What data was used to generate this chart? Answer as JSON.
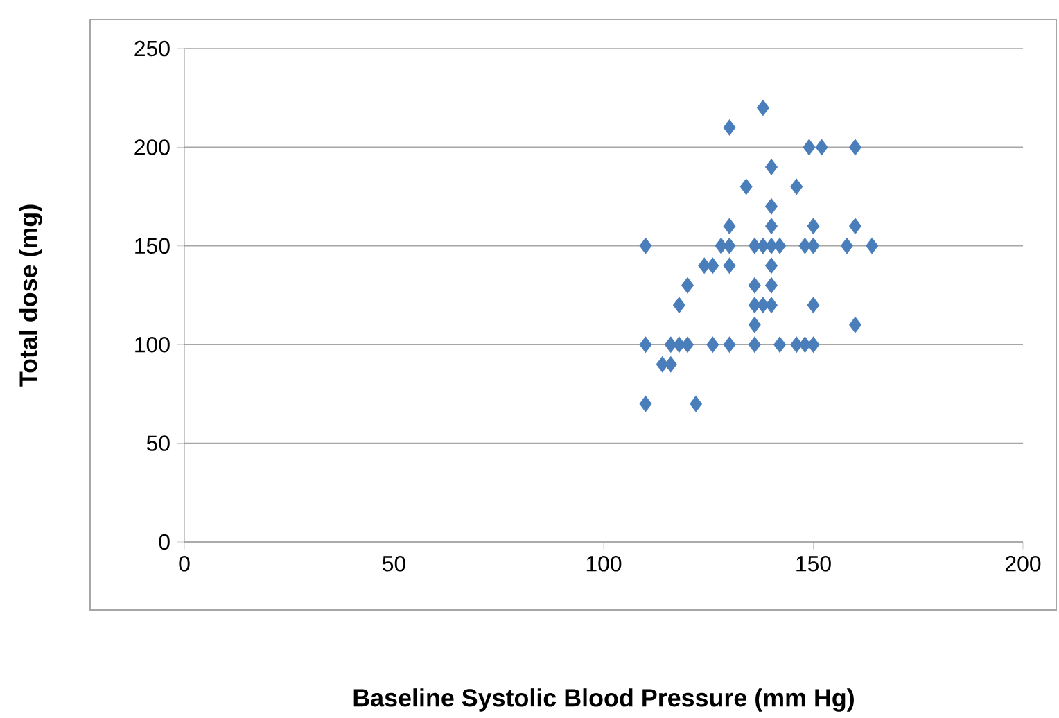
{
  "chart_data": {
    "type": "scatter",
    "xlabel": "Baseline Systolic Blood Pressure (mm Hg)",
    "ylabel": "Total dose (mg)",
    "x": [
      110,
      110,
      110,
      114,
      116,
      116,
      118,
      118,
      120,
      120,
      122,
      124,
      126,
      126,
      128,
      130,
      130,
      130,
      130,
      130,
      134,
      136,
      136,
      136,
      136,
      136,
      138,
      138,
      138,
      140,
      140,
      140,
      140,
      140,
      140,
      140,
      142,
      142,
      146,
      146,
      148,
      148,
      149,
      150,
      150,
      150,
      150,
      152,
      158,
      160,
      160,
      160,
      164
    ],
    "values": [
      150,
      100,
      70,
      90,
      90,
      100,
      100,
      120,
      100,
      130,
      70,
      140,
      140,
      100,
      150,
      160,
      150,
      140,
      100,
      210,
      180,
      150,
      130,
      120,
      110,
      100,
      220,
      150,
      120,
      190,
      170,
      160,
      150,
      140,
      130,
      120,
      150,
      100,
      180,
      100,
      150,
      100,
      200,
      160,
      150,
      120,
      100,
      200,
      150,
      200,
      160,
      110,
      150
    ],
    "color": "#4a7ebb",
    "marker": "diamond",
    "grid": "y",
    "xlim": [
      0,
      200
    ],
    "ylim": [
      0,
      250
    ],
    "xticks": [
      0,
      50,
      100,
      150,
      200
    ],
    "yticks": [
      0,
      50,
      100,
      150,
      200,
      250
    ]
  }
}
